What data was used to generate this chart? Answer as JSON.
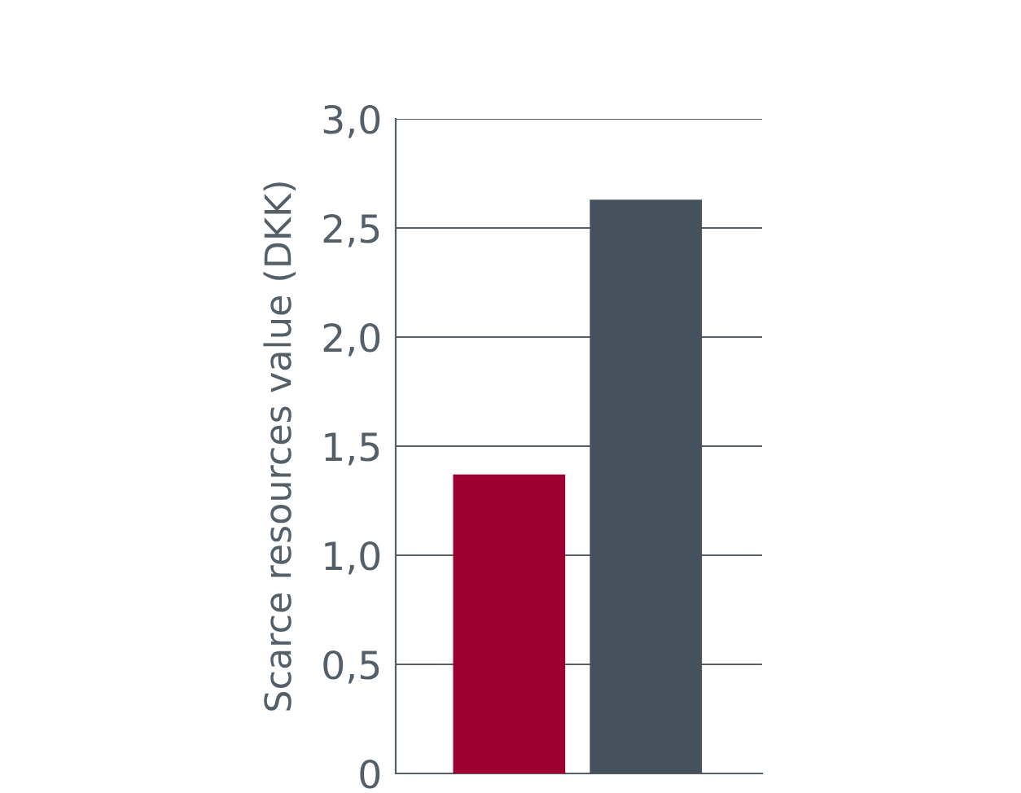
{
  "chart_data": {
    "type": "bar",
    "ylabel": "Scarce resources value (DKK)",
    "categories": [
      null,
      null
    ],
    "values": [
      1.37,
      2.63
    ],
    "colors": [
      "#9b0030",
      "#45525d"
    ],
    "ylim": [
      0,
      3.0
    ],
    "yticks": [
      {
        "value": 0,
        "label": "0"
      },
      {
        "value": 0.5,
        "label": "0,5"
      },
      {
        "value": 1.0,
        "label": "1,0"
      },
      {
        "value": 1.5,
        "label": "1,5"
      },
      {
        "value": 2.0,
        "label": "2,0"
      },
      {
        "value": 2.5,
        "label": "2,5"
      },
      {
        "value": 3.0,
        "label": "3,0"
      }
    ],
    "grid": "y"
  }
}
